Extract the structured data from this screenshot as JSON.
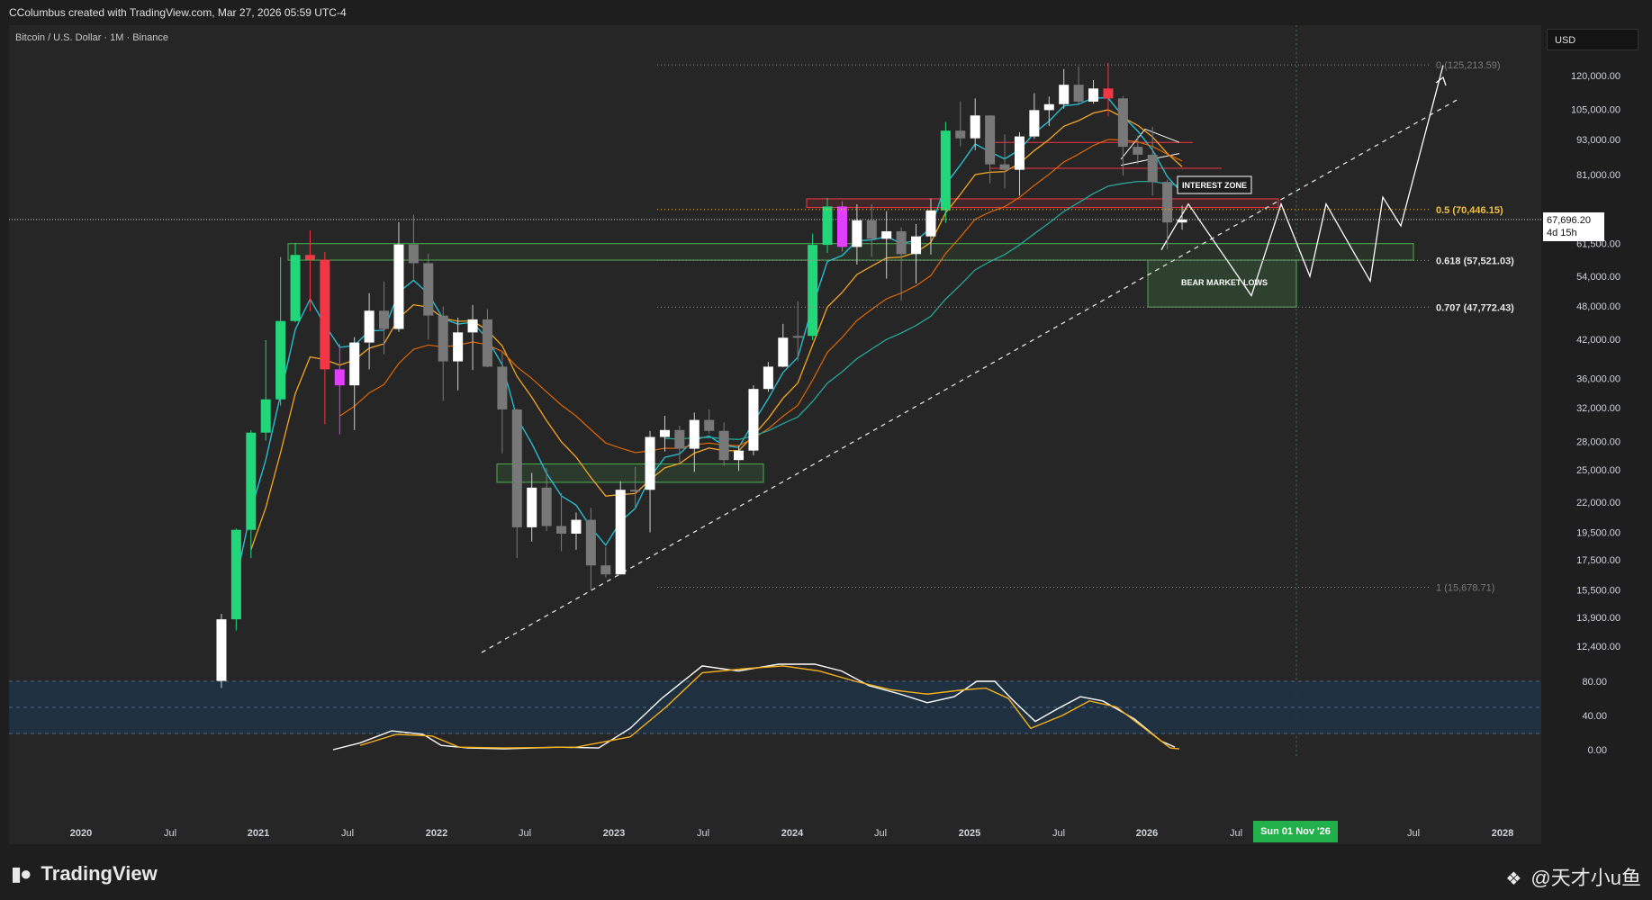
{
  "header": {
    "created_by": "CColumbus created with TradingView.com, Mar 27, 2026 05:59 UTC-4"
  },
  "symbol": {
    "label": "Bitcoin / U.S. Dollar · 1M · Binance"
  },
  "currency": "USD",
  "last_price": {
    "value": "67,696.20",
    "countdown": "4d 15h"
  },
  "crosshair_date": "Sun 01 Nov '26",
  "branding": {
    "logo_text": "TradingView",
    "watermark": "@天才小u鱼"
  },
  "colors": {
    "background": "#1e1e1e",
    "plot_bg": "#262626",
    "up": "#22d67a",
    "down": "#f23645",
    "neutral": "#787878",
    "white_candle": "#ffffff",
    "magenta": "#e040fb",
    "ema_fast": "#26c6da",
    "ema_mid": "#f5a623",
    "ema_slow": "#26a69a",
    "fib_gold": "#f0c040"
  },
  "chart_data": {
    "type": "candlestick",
    "y_scale": "log",
    "ylim": [
      11000,
      135000
    ],
    "x_axis_ticks": [
      "2020",
      "Jul",
      "2021",
      "Jul",
      "2022",
      "Jul",
      "2023",
      "Jul",
      "2024",
      "Jul",
      "2025",
      "Jul",
      "2026",
      "Jul",
      "Sun 01 Nov '26",
      "Jul",
      "2028"
    ],
    "y_axis_ticks": [
      "120,000.00",
      "105,000.00",
      "93,000.00",
      "81,000.00",
      "61,500.00",
      "54,000.00",
      "48,000.00",
      "42,000.00",
      "36,000.00",
      "32,000.00",
      "28,000.00",
      "25,000.00",
      "22,000.00",
      "19,500.00",
      "17,500.00",
      "15,500.00",
      "13,900.00",
      "12,400.00"
    ],
    "fib_levels": [
      {
        "label": "0 (125,213.59)",
        "value": 125213.59
      },
      {
        "label": "0.5 (70,446.15)",
        "value": 70446.15
      },
      {
        "label": "0.618 (57,521.03)",
        "value": 57521.03
      },
      {
        "label": "0.707 (47,772.43)",
        "value": 47772.43
      },
      {
        "label": "1 (15,678.71)",
        "value": 15678.71
      }
    ],
    "annotations": [
      "INTEREST ZONE",
      "BEAR MARKET LOWS"
    ],
    "candles": [
      {
        "date": "2020-10",
        "o": 10800,
        "h": 14100,
        "l": 10500,
        "c": 13800,
        "s": "white"
      },
      {
        "date": "2020-11",
        "o": 13800,
        "h": 19800,
        "l": 13200,
        "c": 19700,
        "s": "up"
      },
      {
        "date": "2020-12",
        "o": 19700,
        "h": 29300,
        "l": 17600,
        "c": 29000,
        "s": "up"
      },
      {
        "date": "2021-01",
        "o": 29000,
        "h": 41900,
        "l": 28100,
        "c": 33100,
        "s": "up"
      },
      {
        "date": "2021-02",
        "o": 33100,
        "h": 58300,
        "l": 32300,
        "c": 45200,
        "s": "up"
      },
      {
        "date": "2021-03",
        "o": 45200,
        "h": 61700,
        "l": 45000,
        "c": 58800,
        "s": "up"
      },
      {
        "date": "2021-04",
        "o": 58800,
        "h": 64800,
        "l": 47000,
        "c": 57700,
        "s": "down_small"
      },
      {
        "date": "2021-05",
        "o": 57700,
        "h": 59500,
        "l": 30000,
        "c": 37300,
        "s": "down"
      },
      {
        "date": "2021-06",
        "o": 37300,
        "h": 41300,
        "l": 28800,
        "c": 35000,
        "s": "magenta"
      },
      {
        "date": "2021-07",
        "o": 35000,
        "h": 42400,
        "l": 29300,
        "c": 41500,
        "s": "white"
      },
      {
        "date": "2021-08",
        "o": 41500,
        "h": 50500,
        "l": 37300,
        "c": 47100,
        "s": "white"
      },
      {
        "date": "2021-09",
        "o": 47100,
        "h": 52900,
        "l": 39600,
        "c": 43800,
        "s": "neutral"
      },
      {
        "date": "2021-10",
        "o": 43800,
        "h": 67000,
        "l": 43300,
        "c": 61300,
        "s": "white"
      },
      {
        "date": "2021-11",
        "o": 61300,
        "h": 69000,
        "l": 53200,
        "c": 56900,
        "s": "neutral"
      },
      {
        "date": "2021-12",
        "o": 56900,
        "h": 59100,
        "l": 42000,
        "c": 46200,
        "s": "neutral"
      },
      {
        "date": "2022-01",
        "o": 46200,
        "h": 47900,
        "l": 32900,
        "c": 38500,
        "s": "neutral"
      },
      {
        "date": "2022-02",
        "o": 38500,
        "h": 45800,
        "l": 34300,
        "c": 43200,
        "s": "white"
      },
      {
        "date": "2022-03",
        "o": 43200,
        "h": 48200,
        "l": 37200,
        "c": 45500,
        "s": "white"
      },
      {
        "date": "2022-04",
        "o": 45500,
        "h": 47400,
        "l": 37600,
        "c": 37700,
        "s": "neutral"
      },
      {
        "date": "2022-05",
        "o": 37700,
        "h": 40000,
        "l": 26700,
        "c": 31800,
        "s": "neutral"
      },
      {
        "date": "2022-06",
        "o": 31800,
        "h": 31900,
        "l": 17600,
        "c": 19900,
        "s": "neutral"
      },
      {
        "date": "2022-07",
        "o": 19900,
        "h": 24700,
        "l": 18800,
        "c": 23300,
        "s": "white"
      },
      {
        "date": "2022-08",
        "o": 23300,
        "h": 25200,
        "l": 19600,
        "c": 20000,
        "s": "neutral"
      },
      {
        "date": "2022-09",
        "o": 20000,
        "h": 22800,
        "l": 18100,
        "c": 19400,
        "s": "neutral"
      },
      {
        "date": "2022-10",
        "o": 19400,
        "h": 21100,
        "l": 18200,
        "c": 20500,
        "s": "white"
      },
      {
        "date": "2022-11",
        "o": 20500,
        "h": 21500,
        "l": 15500,
        "c": 17100,
        "s": "neutral"
      },
      {
        "date": "2022-12",
        "o": 17100,
        "h": 18400,
        "l": 16300,
        "c": 16500,
        "s": "neutral"
      },
      {
        "date": "2023-01",
        "o": 16500,
        "h": 23900,
        "l": 16500,
        "c": 23100,
        "s": "white"
      },
      {
        "date": "2023-02",
        "o": 23100,
        "h": 25300,
        "l": 21400,
        "c": 23100,
        "s": "neutral"
      },
      {
        "date": "2023-03",
        "o": 23100,
        "h": 29200,
        "l": 19500,
        "c": 28500,
        "s": "white"
      },
      {
        "date": "2023-04",
        "o": 28500,
        "h": 31000,
        "l": 26900,
        "c": 29300,
        "s": "white"
      },
      {
        "date": "2023-05",
        "o": 29300,
        "h": 29800,
        "l": 25800,
        "c": 27200,
        "s": "neutral"
      },
      {
        "date": "2023-06",
        "o": 27200,
        "h": 31400,
        "l": 24800,
        "c": 30500,
        "s": "white"
      },
      {
        "date": "2023-07",
        "o": 30500,
        "h": 31800,
        "l": 28900,
        "c": 29200,
        "s": "neutral"
      },
      {
        "date": "2023-08",
        "o": 29200,
        "h": 30200,
        "l": 25400,
        "c": 26000,
        "s": "neutral"
      },
      {
        "date": "2023-09",
        "o": 26000,
        "h": 27500,
        "l": 24900,
        "c": 27000,
        "s": "white"
      },
      {
        "date": "2023-10",
        "o": 27000,
        "h": 35000,
        "l": 26500,
        "c": 34500,
        "s": "white"
      },
      {
        "date": "2023-11",
        "o": 34500,
        "h": 38400,
        "l": 34100,
        "c": 37700,
        "s": "white"
      },
      {
        "date": "2023-12",
        "o": 37700,
        "h": 44700,
        "l": 37600,
        "c": 42300,
        "s": "white"
      },
      {
        "date": "2024-01",
        "o": 42300,
        "h": 48900,
        "l": 38500,
        "c": 42600,
        "s": "neutral"
      },
      {
        "date": "2024-02",
        "o": 42600,
        "h": 64000,
        "l": 41900,
        "c": 61200,
        "s": "up"
      },
      {
        "date": "2024-03",
        "o": 61200,
        "h": 73800,
        "l": 59300,
        "c": 71300,
        "s": "up"
      },
      {
        "date": "2024-04",
        "o": 71300,
        "h": 72800,
        "l": 59600,
        "c": 60700,
        "s": "magenta"
      },
      {
        "date": "2024-05",
        "o": 60700,
        "h": 71900,
        "l": 56600,
        "c": 67500,
        "s": "white"
      },
      {
        "date": "2024-06",
        "o": 67500,
        "h": 71900,
        "l": 58400,
        "c": 62700,
        "s": "neutral"
      },
      {
        "date": "2024-07",
        "o": 62700,
        "h": 70000,
        "l": 53500,
        "c": 64600,
        "s": "white"
      },
      {
        "date": "2024-08",
        "o": 64600,
        "h": 65600,
        "l": 49000,
        "c": 59000,
        "s": "neutral"
      },
      {
        "date": "2024-09",
        "o": 59000,
        "h": 66500,
        "l": 52500,
        "c": 63300,
        "s": "white"
      },
      {
        "date": "2024-10",
        "o": 63300,
        "h": 73600,
        "l": 58900,
        "c": 70200,
        "s": "white"
      },
      {
        "date": "2024-11",
        "o": 70200,
        "h": 99800,
        "l": 66800,
        "c": 96400,
        "s": "up"
      },
      {
        "date": "2024-12",
        "o": 96400,
        "h": 108300,
        "l": 90500,
        "c": 93500,
        "s": "neutral"
      },
      {
        "date": "2025-01",
        "o": 93500,
        "h": 109600,
        "l": 89200,
        "c": 102400,
        "s": "white"
      },
      {
        "date": "2025-02",
        "o": 102400,
        "h": 102500,
        "l": 78200,
        "c": 84300,
        "s": "neutral"
      },
      {
        "date": "2025-03",
        "o": 84300,
        "h": 95000,
        "l": 76600,
        "c": 82500,
        "s": "neutral"
      },
      {
        "date": "2025-04",
        "o": 82500,
        "h": 95800,
        "l": 74400,
        "c": 94200,
        "s": "white"
      },
      {
        "date": "2025-05",
        "o": 94200,
        "h": 111900,
        "l": 93300,
        "c": 104600,
        "s": "white"
      },
      {
        "date": "2025-06",
        "o": 104600,
        "h": 110400,
        "l": 98200,
        "c": 107100,
        "s": "white"
      },
      {
        "date": "2025-07",
        "o": 107100,
        "h": 123200,
        "l": 105200,
        "c": 115700,
        "s": "white"
      },
      {
        "date": "2025-08",
        "o": 115700,
        "h": 124500,
        "l": 107300,
        "c": 108200,
        "s": "neutral"
      },
      {
        "date": "2025-09",
        "o": 108200,
        "h": 117900,
        "l": 107300,
        "c": 114000,
        "s": "white"
      },
      {
        "date": "2025-10",
        "o": 114000,
        "h": 126200,
        "l": 102000,
        "c": 109600,
        "s": "down"
      },
      {
        "date": "2025-11",
        "o": 109600,
        "h": 110600,
        "l": 80600,
        "c": 90400,
        "s": "neutral"
      },
      {
        "date": "2025-12",
        "o": 90400,
        "h": 94600,
        "l": 84400,
        "c": 87600,
        "s": "neutral"
      },
      {
        "date": "2026-01",
        "o": 87600,
        "h": 97900,
        "l": 74500,
        "c": 78600,
        "s": "neutral"
      },
      {
        "date": "2026-02",
        "o": 78600,
        "h": 79300,
        "l": 60100,
        "c": 66900,
        "s": "neutral"
      },
      {
        "date": "2026-03",
        "o": 66900,
        "h": 71500,
        "l": 65000,
        "c": 67696.2,
        "s": "white"
      }
    ],
    "stoch_rsi": {
      "y_ticks": [
        "80.00",
        "40.00",
        "0.00"
      ],
      "band": [
        20,
        80
      ]
    }
  }
}
